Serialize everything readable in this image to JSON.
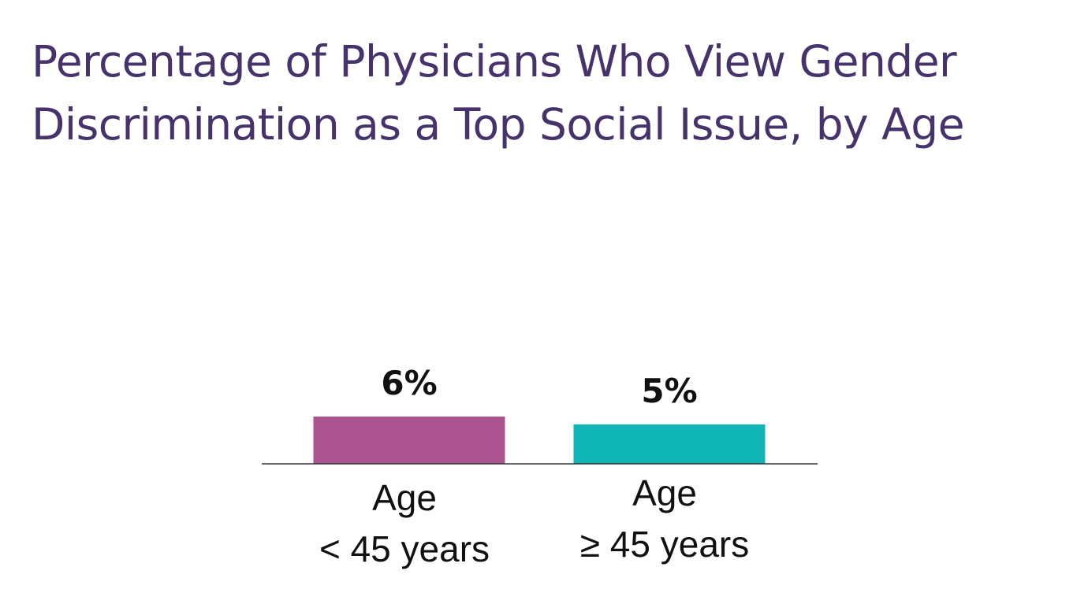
{
  "chart_data": {
    "type": "bar",
    "title_lines": [
      "Percentage of Physicians Who View Gender",
      "Discrimination as a Top Social Issue, by Age"
    ],
    "categories": [
      [
        "Age",
        "< 45 years"
      ],
      [
        "Age",
        "≥ 45 years"
      ]
    ],
    "values": [
      6,
      5
    ],
    "value_labels": [
      "6%",
      "5%"
    ],
    "colors": [
      "#ab538e",
      "#10b5b5"
    ],
    "ylim": [
      0,
      35
    ],
    "grid": false,
    "legend": "none"
  }
}
